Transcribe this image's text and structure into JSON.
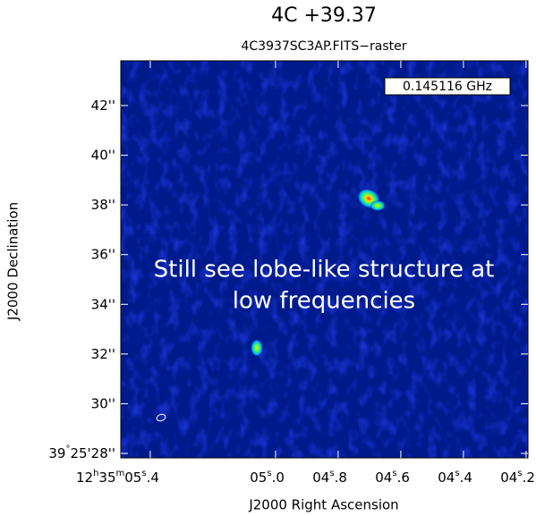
{
  "chart_data": {
    "type": "image",
    "title": "4C +39.37",
    "subtitle": "4C3937SC3AP.FITS−raster",
    "xlabel": "J2000 Right Ascension",
    "ylabel": "J2000 Declination",
    "xlim": [
      5.494,
      4.194
    ],
    "ylim": [
      27.82,
      43.8
    ],
    "xticks": [
      {
        "value": 5.4,
        "label": "12h35m05s.4"
      },
      {
        "value": 5.0,
        "label": "05s.0"
      },
      {
        "value": 4.8,
        "label": "04s.8"
      },
      {
        "value": 4.6,
        "label": "04s.6"
      },
      {
        "value": 4.4,
        "label": "04s.4"
      },
      {
        "value": 4.2,
        "label": "04s.2"
      }
    ],
    "yticks": [
      {
        "value": 42,
        "label": "42''"
      },
      {
        "value": 40,
        "label": "40''"
      },
      {
        "value": 38,
        "label": "38''"
      },
      {
        "value": 36,
        "label": "36''"
      },
      {
        "value": 34,
        "label": "34''"
      },
      {
        "value": 32,
        "label": "32''"
      },
      {
        "value": 30,
        "label": "30''"
      },
      {
        "value": 28,
        "label": "39°25'28''"
      }
    ],
    "frequency_label": "0.145116 GHz",
    "annotation": [
      "Still see lobe-like structure at",
      "low frequencies"
    ]
  }
}
